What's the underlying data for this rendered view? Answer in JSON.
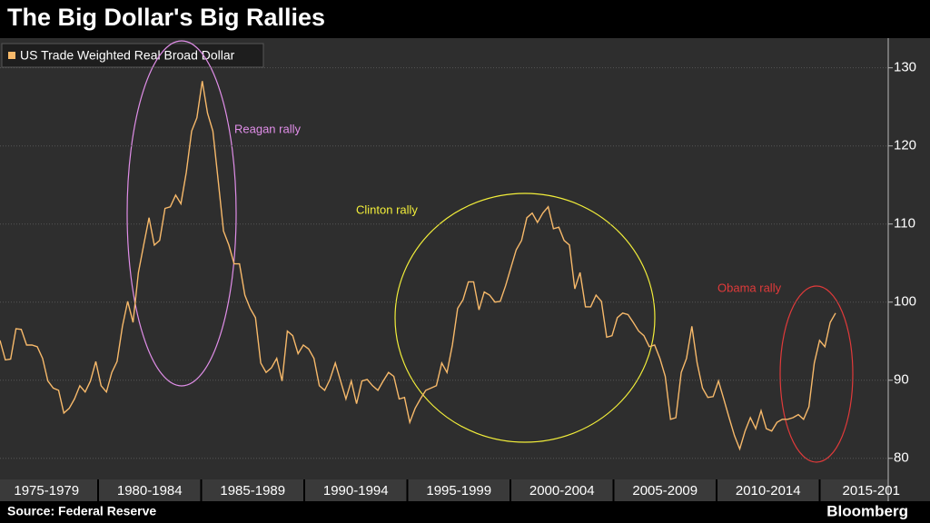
{
  "chart_data": {
    "type": "line",
    "title": "The Big Dollar's Big Rallies",
    "source": "Source: Federal Reserve",
    "brand": "Bloomberg",
    "xlabels": [
      "1975-1979",
      "1980-1984",
      "1985-1989",
      "1990-1994",
      "1995-1999",
      "2000-2004",
      "2005-2009",
      "2010-2014",
      "2015-201"
    ],
    "ylim": [
      77.3,
      133.8
    ],
    "yticks": [
      80,
      90,
      100,
      110,
      120,
      130
    ],
    "series": [
      {
        "name": "US Trade Weighted Real Broad Dollar",
        "color": "#f7b96a",
        "values": [
          95.1,
          92.6,
          92.7,
          96.6,
          96.5,
          94.5,
          94.5,
          94.3,
          92.8,
          89.9,
          89.0,
          88.7,
          85.8,
          86.4,
          87.6,
          89.3,
          88.5,
          89.9,
          92.4,
          89.3,
          88.5,
          91.0,
          92.4,
          96.9,
          100.1,
          97.4,
          103.8,
          107.3,
          110.8,
          107.3,
          107.9,
          112.0,
          112.2,
          113.7,
          112.6,
          116.6,
          121.9,
          123.6,
          128.3,
          124.2,
          121.9,
          115.5,
          109.1,
          107.3,
          104.9,
          104.9,
          100.9,
          99.2,
          98.0,
          92.2,
          91.0,
          91.6,
          92.8,
          89.9,
          96.3,
          95.7,
          93.4,
          94.5,
          94.0,
          92.8,
          89.3,
          88.7,
          90.1,
          92.2,
          89.9,
          87.6,
          89.9,
          87.0,
          89.9,
          90.1,
          89.3,
          88.7,
          89.9,
          91.0,
          90.5,
          87.6,
          87.8,
          84.6,
          86.4,
          87.6,
          88.7,
          89.0,
          89.3,
          92.2,
          91.0,
          94.5,
          99.2,
          100.3,
          102.6,
          102.6,
          99.0,
          101.3,
          100.9,
          100.0,
          100.1,
          102.1,
          104.4,
          106.7,
          107.9,
          110.8,
          111.4,
          110.2,
          111.4,
          112.2,
          109.4,
          109.6,
          107.9,
          107.3,
          101.7,
          103.8,
          99.4,
          99.4,
          100.9,
          100.1,
          95.5,
          95.7,
          98.0,
          98.6,
          98.4,
          97.4,
          96.3,
          95.7,
          94.3,
          94.5,
          92.8,
          90.5,
          85.0,
          85.2,
          91.0,
          92.8,
          96.9,
          92.2,
          89.0,
          87.8,
          87.9,
          89.9,
          87.6,
          85.2,
          82.9,
          81.2,
          83.5,
          85.2,
          83.8,
          86.1,
          83.8,
          83.5,
          84.6,
          85.0,
          85.0,
          85.2,
          85.6,
          85.0,
          86.6,
          92.2,
          95.1,
          94.3,
          97.4,
          98.6
        ]
      }
    ],
    "annotations": [
      {
        "text": "Reagan rally",
        "color": "#e08ee8"
      },
      {
        "text": "Clinton rally",
        "color": "#f2ee3a"
      },
      {
        "text": "Obama rally",
        "color": "#e03a3a"
      }
    ]
  }
}
